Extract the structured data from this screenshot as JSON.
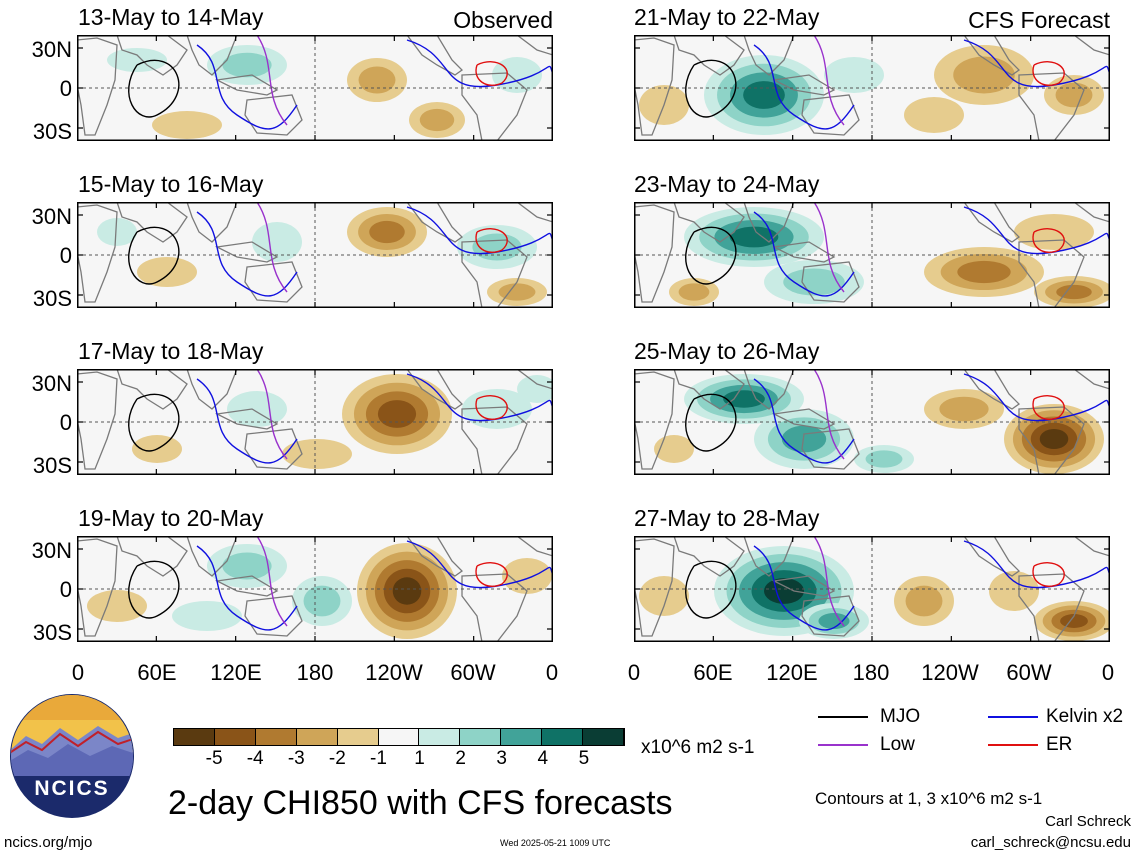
{
  "panels": [
    {
      "title": "13-May to 14-May",
      "label": "Observed"
    },
    {
      "title": "15-May to 16-May",
      "label": ""
    },
    {
      "title": "17-May to 18-May",
      "label": ""
    },
    {
      "title": "19-May to 20-May",
      "label": ""
    },
    {
      "title": "21-May to 22-May",
      "label": "CFS Forecast"
    },
    {
      "title": "23-May to 24-May",
      "label": ""
    },
    {
      "title": "25-May to 26-May",
      "label": ""
    },
    {
      "title": "27-May to 28-May",
      "label": ""
    }
  ],
  "lat_ticks": [
    "30N",
    "0",
    "30S"
  ],
  "lon_ticks": [
    "0",
    "60E",
    "120E",
    "180",
    "120W",
    "60W",
    "0"
  ],
  "colorbar": {
    "ticks": [
      "-5",
      "-4",
      "-3",
      "-2",
      "-1",
      "1",
      "2",
      "3",
      "4",
      "5"
    ],
    "units": "x10^6 m2 s-1",
    "colors": [
      "#5a3a10",
      "#8a5418",
      "#b07a30",
      "#cfa558",
      "#e6cc8e",
      "#f6f6f6",
      "#c9ebe4",
      "#8ed3c7",
      "#41a399",
      "#0f7266",
      "#0a3d34"
    ]
  },
  "legend": {
    "mjo": {
      "label": "MJO",
      "color": "#000000"
    },
    "kelvin": {
      "label": "Kelvin x2",
      "color": "#1010e0"
    },
    "low": {
      "label": "Low",
      "color": "#9932cc"
    },
    "er": {
      "label": "ER",
      "color": "#e01010"
    }
  },
  "main_title": "2-day CHI850 with CFS forecasts",
  "logo_text": "NCICS",
  "contours_note": "Contours at 1, 3 x10^6 m2 s-1",
  "author": "Carl Schreck",
  "email": "carl_schreck@ncsu.edu",
  "site": "ncics.org/mjo",
  "timestamp": "Wed 2025-05-21 1009 UTC"
}
